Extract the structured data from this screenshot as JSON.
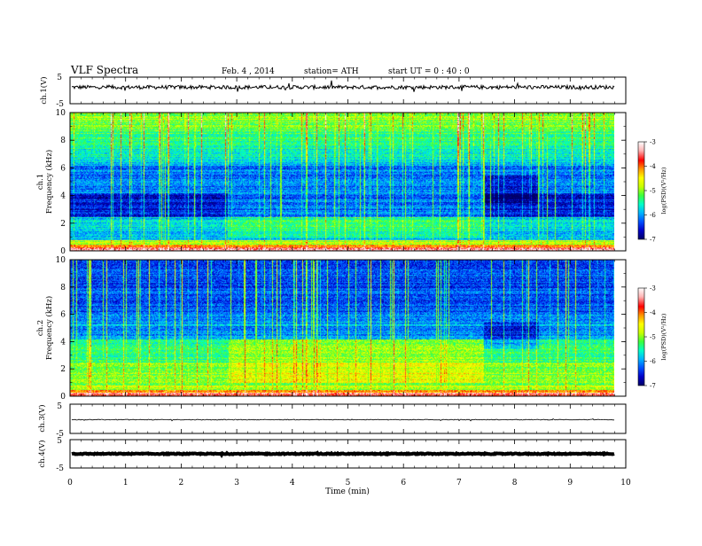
{
  "header": {
    "title": "VLF  Spectra",
    "date": "Feb. 4  , 2014",
    "station": "station= ATH",
    "start": "start  UT =   0 : 40 : 0"
  },
  "chart_data": [
    {
      "type": "line",
      "panel": "ch1-waveform",
      "ylabel": "ch.1(V)",
      "ylim": [
        -5,
        5
      ],
      "yticks": [
        "5",
        "-5"
      ],
      "x_range_min": [
        0,
        9.8
      ],
      "baseline_v": 1.2,
      "color": "#000000"
    },
    {
      "type": "heatmap",
      "panel": "ch1-spectrogram",
      "ylabel": "ch.1\nFrequency  (kHz)",
      "ylim": [
        0,
        10
      ],
      "yticks": [
        "0",
        "2",
        "4",
        "6",
        "8",
        "10"
      ],
      "x_range_min": [
        0,
        9.8
      ],
      "colorbar": {
        "label": "log(PSD)(V²/Hz)",
        "range": [
          -7,
          -3
        ],
        "ticks": [
          "-3",
          "-4",
          "-5",
          "-6",
          "-7"
        ]
      }
    },
    {
      "type": "heatmap",
      "panel": "ch2-spectrogram",
      "ylabel": "ch.2\nFrequency  (kHz)",
      "ylim": [
        0,
        10
      ],
      "yticks": [
        "0",
        "2",
        "4",
        "6",
        "8",
        "10"
      ],
      "x_range_min": [
        0,
        9.8
      ],
      "colorbar": {
        "label": "log(PSD)(V²/Hz)",
        "range": [
          -7,
          -3
        ],
        "ticks": [
          "-3",
          "-4",
          "-5",
          "-6",
          "-7"
        ]
      }
    },
    {
      "type": "line",
      "panel": "ch3-waveform",
      "ylabel": "ch.3(V)",
      "ylim": [
        -5,
        5
      ],
      "yticks": [
        "5",
        "-5"
      ],
      "x_range_min": [
        0,
        9.8
      ],
      "baseline_v": -0.3,
      "color": "#000000"
    },
    {
      "type": "line",
      "panel": "ch4-waveform",
      "ylabel": "ch.4(V)",
      "ylim": [
        -5,
        5
      ],
      "yticks": [
        "5",
        "-5"
      ],
      "x_range_min": [
        0,
        9.8
      ],
      "baseline_v": 0,
      "color": "#000000"
    }
  ],
  "xaxis": {
    "label": "Time  (min)",
    "range": [
      0,
      10
    ],
    "ticks": [
      "0",
      "1",
      "2",
      "3",
      "4",
      "5",
      "6",
      "7",
      "8",
      "9",
      "10"
    ]
  },
  "colormap": [
    "#000066",
    "#0000c8",
    "#0050ff",
    "#00b4ff",
    "#00ffc8",
    "#3cff3c",
    "#c8ff00",
    "#ffff00",
    "#ff9600",
    "#ff0000",
    "#ffb4b4",
    "#ffffff"
  ]
}
